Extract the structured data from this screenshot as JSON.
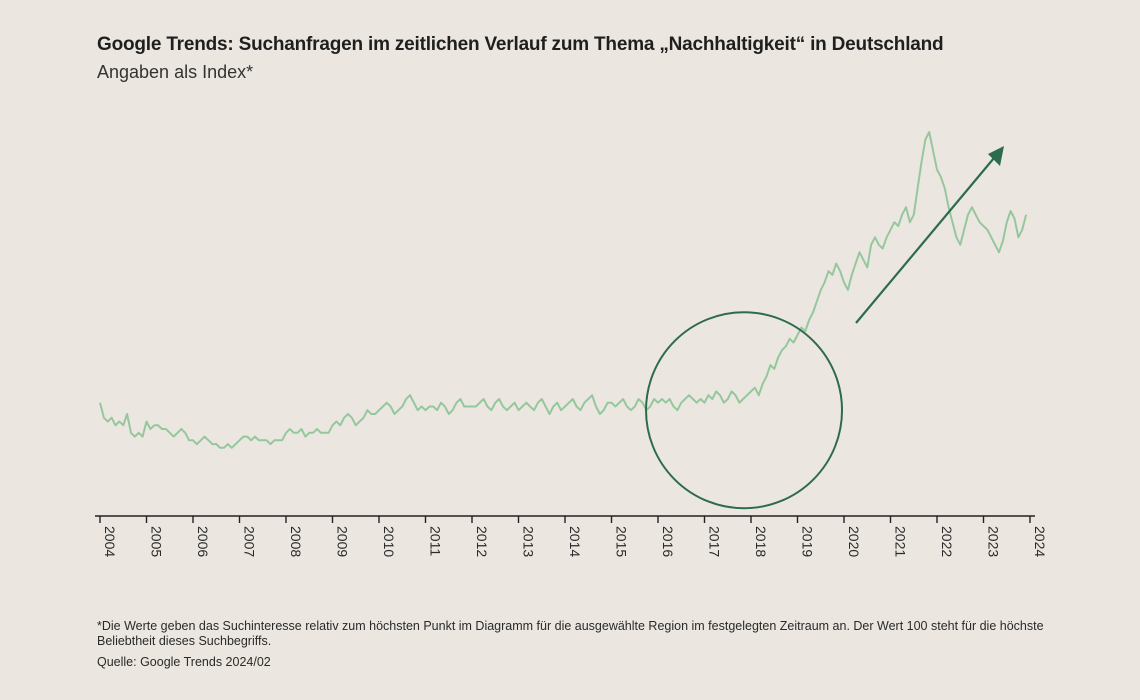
{
  "title": "Google Trends: Suchanfragen im zeitlichen Verlauf zum Thema „Nachhaltigkeit“ in Deutschland",
  "subtitle": "Angaben als Index*",
  "footnote": "*Die Werte geben das Suchinteresse relativ zum höchsten Punkt im Diagramm für die ausgewählte Region im festgelegten Zeitraum an. Der Wert 100 steht für die höchste Beliebtheit dieses Suchbegriffs.",
  "source": "Quelle: Google Trends 2024/02",
  "colors": {
    "background": "#ebe7e0",
    "line": "#95c79d",
    "annotation": "#2d6b4d",
    "axis": "#222222"
  },
  "chart_data": {
    "type": "line",
    "title": "Google Trends: Suchanfragen im zeitlichen Verlauf zum Thema „Nachhaltigkeit“ in Deutschland",
    "subtitle": "Angaben als Index*",
    "xlabel": "",
    "ylabel": "",
    "x_tick_labels": [
      "2004",
      "2005",
      "2006",
      "2007",
      "2008",
      "2009",
      "2010",
      "2011",
      "2012",
      "2013",
      "2014",
      "2015",
      "2016",
      "2017",
      "2018",
      "2019",
      "2020",
      "2021",
      "2022",
      "2023",
      "2024"
    ],
    "xlim": [
      2004,
      2024
    ],
    "ylim": [
      0,
      100
    ],
    "grid": false,
    "legend": "none",
    "annotations": [
      "circle around 2017–2019",
      "arrow pointing up-right from circle"
    ],
    "series": [
      {
        "yearly_points": [
          {
            "year": 2004,
            "values": [
              28,
              24,
              23,
              24,
              22,
              23,
              22,
              25,
              20,
              19,
              20,
              19
            ]
          },
          {
            "year": 2005,
            "values": [
              23,
              21,
              22,
              22,
              21,
              21,
              20,
              19,
              20,
              21,
              20,
              18
            ]
          },
          {
            "year": 2006,
            "values": [
              18,
              17,
              18,
              19,
              18,
              17,
              17,
              16,
              16,
              17,
              16,
              17
            ]
          },
          {
            "year": 2007,
            "values": [
              18,
              19,
              19,
              18,
              19,
              18,
              18,
              18,
              17,
              18,
              18,
              18
            ]
          },
          {
            "year": 2008,
            "values": [
              20,
              21,
              20,
              20,
              21,
              19,
              20,
              20,
              21,
              20,
              20,
              20
            ]
          },
          {
            "year": 2009,
            "values": [
              22,
              23,
              22,
              24,
              25,
              24,
              22,
              23,
              24,
              26,
              25,
              25
            ]
          },
          {
            "year": 2010,
            "values": [
              26,
              27,
              28,
              27,
              25,
              26,
              27,
              29,
              30,
              28,
              26,
              27
            ]
          },
          {
            "year": 2011,
            "values": [
              26,
              27,
              27,
              26,
              28,
              27,
              25,
              26,
              28,
              29,
              27,
              27
            ]
          },
          {
            "year": 2012,
            "values": [
              27,
              27,
              28,
              29,
              27,
              26,
              28,
              29,
              27,
              26,
              27,
              28
            ]
          },
          {
            "year": 2013,
            "values": [
              26,
              27,
              28,
              27,
              26,
              28,
              29,
              27,
              25,
              27,
              28,
              26
            ]
          },
          {
            "year": 2014,
            "values": [
              27,
              28,
              29,
              27,
              26,
              28,
              29,
              30,
              27,
              25,
              26,
              28
            ]
          },
          {
            "year": 2015,
            "values": [
              28,
              27,
              28,
              29,
              27,
              26,
              27,
              29,
              28,
              26,
              27,
              29
            ]
          },
          {
            "year": 2016,
            "values": [
              28,
              29,
              28,
              29,
              27,
              26,
              28,
              29,
              30,
              29,
              28,
              29
            ]
          },
          {
            "year": 2017,
            "values": [
              28,
              30,
              29,
              31,
              30,
              28,
              29,
              31,
              30,
              28,
              29,
              30
            ]
          },
          {
            "year": 2018,
            "values": [
              31,
              32,
              30,
              33,
              35,
              38,
              37,
              40,
              42,
              43,
              45,
              44
            ]
          },
          {
            "year": 2019,
            "values": [
              46,
              48,
              47,
              50,
              52,
              55,
              58,
              60,
              63,
              62,
              65,
              63
            ]
          },
          {
            "year": 2020,
            "values": [
              60,
              58,
              62,
              65,
              68,
              66,
              64,
              70,
              72,
              70,
              69,
              72
            ]
          },
          {
            "year": 2021,
            "values": [
              74,
              76,
              75,
              78,
              80,
              76,
              78,
              85,
              92,
              98,
              100,
              95
            ]
          },
          {
            "year": 2022,
            "values": [
              90,
              88,
              85,
              80,
              76,
              72,
              70,
              74,
              78,
              80,
              78,
              76
            ]
          },
          {
            "year": 2023,
            "values": [
              75,
              74,
              72,
              70,
              68,
              71,
              76,
              79,
              77,
              72,
              74,
              78
            ]
          }
        ]
      }
    ]
  }
}
